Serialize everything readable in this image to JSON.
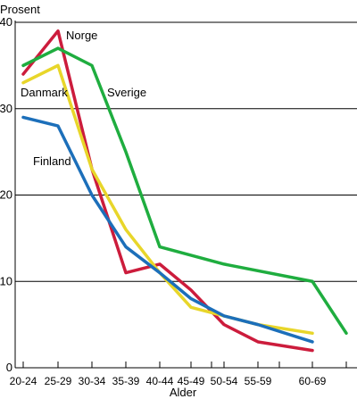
{
  "chart_data": {
    "type": "line",
    "title": "",
    "ylabel": "Prosent",
    "xlabel": "Alder",
    "ylim": [
      0,
      40
    ],
    "yticks": [
      0,
      10,
      20,
      30,
      40
    ],
    "grid": "horizontal",
    "categories": [
      "20-24",
      "25-29",
      "30-34",
      "35-39",
      "40-44",
      "45-49",
      "50-54",
      "55-59",
      "60-69"
    ],
    "series": [
      {
        "name": "Norge",
        "color": "#cc1c3c",
        "width": 3.5,
        "points": [
          {
            "x": "20-24",
            "y": 34
          },
          {
            "x": "25-29",
            "y": 39
          },
          {
            "x": "30-34",
            "y": 23
          },
          {
            "x": "35-39",
            "y": 11
          },
          {
            "x": "40-44",
            "y": 12
          },
          {
            "x": "45-49",
            "y": 9
          },
          {
            "x": "50-54",
            "y": 5
          },
          {
            "x": "55-59",
            "y": 3
          },
          {
            "x": "60-69",
            "y": 2
          }
        ]
      },
      {
        "name": "Sverige",
        "color": "#1fad3f",
        "width": 3.5,
        "points": [
          {
            "x": "20-24",
            "y": 35
          },
          {
            "x": "25-29",
            "y": 37
          },
          {
            "x": "30-34",
            "y": 35
          },
          {
            "x": "35-39",
            "y": 25
          },
          {
            "x": "40-44",
            "y": 14
          },
          {
            "x": "50-54",
            "y": 12
          },
          {
            "x": "60-69",
            "y": 10
          },
          {
            "x": "end",
            "y": 4
          }
        ]
      },
      {
        "name": "Danmark",
        "color": "#e8d62a",
        "width": 3.5,
        "points": [
          {
            "x": "20-24",
            "y": 33
          },
          {
            "x": "25-29",
            "y": 35
          },
          {
            "x": "30-34",
            "y": 23
          },
          {
            "x": "35-39",
            "y": 16
          },
          {
            "x": "40-44",
            "y": 11
          },
          {
            "x": "45-49",
            "y": 7
          },
          {
            "x": "50-54",
            "y": 6
          },
          {
            "x": "55-59",
            "y": 5
          },
          {
            "x": "60-69",
            "y": 4
          }
        ]
      },
      {
        "name": "Finland",
        "color": "#1c6fba",
        "width": 3.5,
        "points": [
          {
            "x": "20-24",
            "y": 29
          },
          {
            "x": "25-29",
            "y": 28
          },
          {
            "x": "30-34",
            "y": 20
          },
          {
            "x": "35-39",
            "y": 14
          },
          {
            "x": "40-44",
            "y": 11
          },
          {
            "x": "45-49",
            "y": 8
          },
          {
            "x": "50-54",
            "y": 6
          },
          {
            "x": "55-59",
            "y": 5
          },
          {
            "x": "60-69",
            "y": 3
          }
        ]
      }
    ]
  }
}
